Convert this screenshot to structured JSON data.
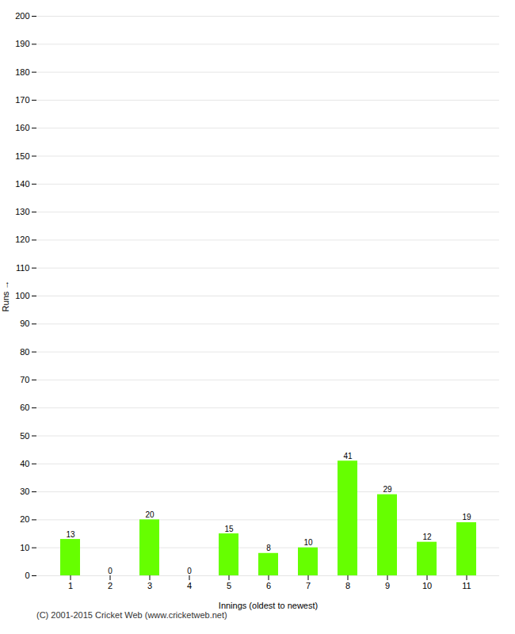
{
  "chart_data": {
    "type": "bar",
    "categories": [
      "1",
      "2",
      "3",
      "4",
      "5",
      "6",
      "7",
      "8",
      "9",
      "10",
      "11"
    ],
    "values": [
      13,
      0,
      20,
      0,
      15,
      8,
      10,
      41,
      29,
      12,
      19
    ],
    "color": "#66ff00",
    "xlabel": "Innings (oldest to newest)",
    "ylabel": "Runs",
    "ylim": [
      0,
      200
    ],
    "yticks": [
      0,
      10,
      20,
      30,
      40,
      50,
      60,
      70,
      80,
      90,
      100,
      110,
      120,
      130,
      140,
      150,
      160,
      170,
      180,
      190,
      200
    ],
    "grid": true,
    "data_labels": true,
    "caption": "(C) 2001-2015 Cricket Web (www.cricketweb.net)"
  }
}
